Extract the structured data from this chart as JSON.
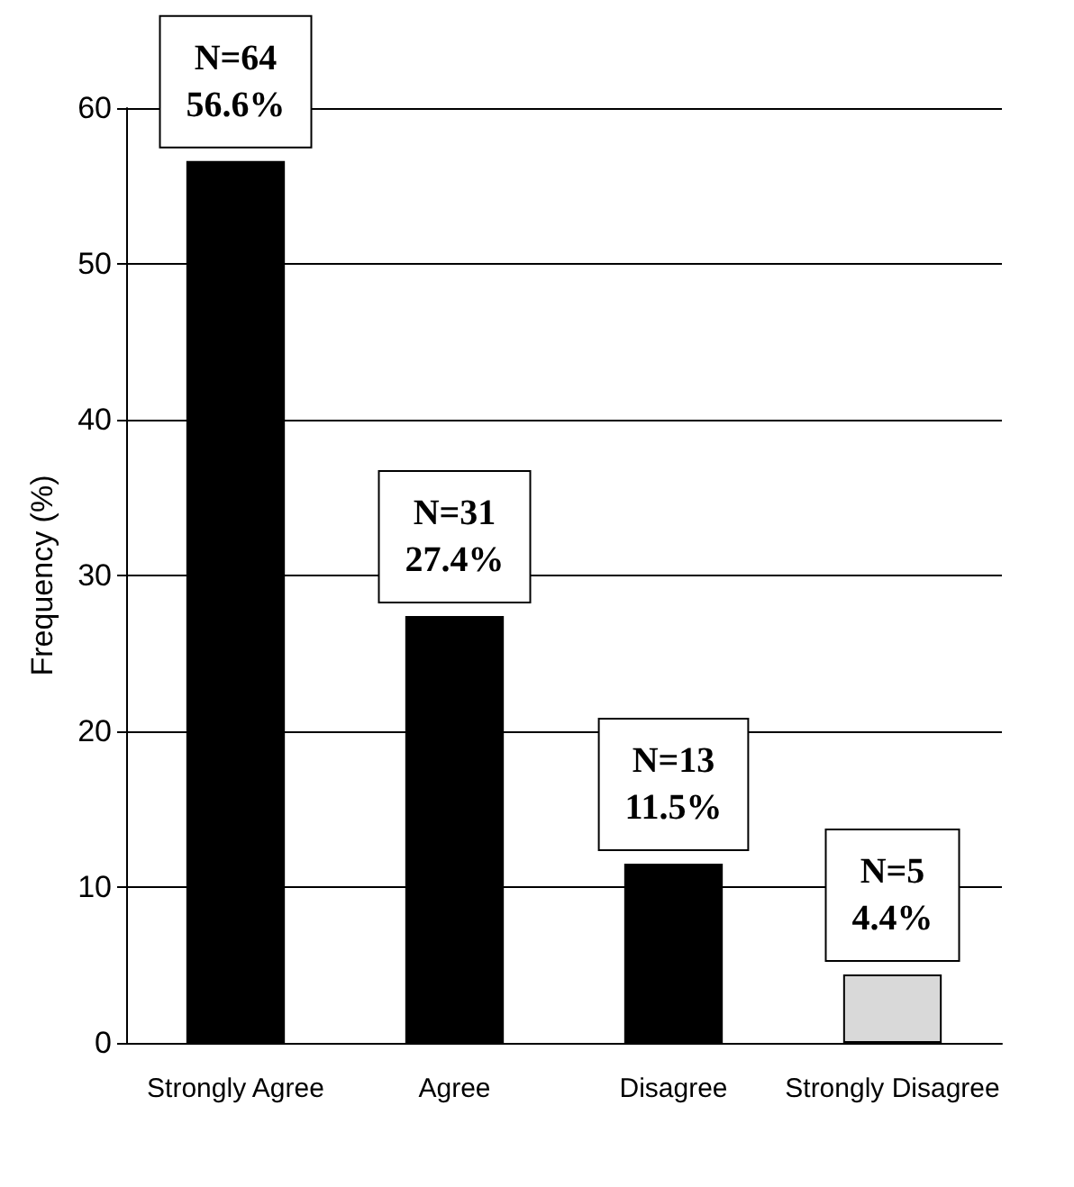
{
  "chart_data": {
    "type": "bar",
    "categories": [
      "Strongly Agree",
      "Agree",
      "Disagree",
      "Strongly Disagree"
    ],
    "values": [
      56.6,
      27.4,
      11.5,
      4.4
    ],
    "colors": [
      "#000000",
      "#000000",
      "#000000",
      "#d9d9d9"
    ],
    "value_labels": [
      "N=64\n56.6%",
      "N=31\n27.4%",
      "N=13\n11.5%",
      "N=5\n4.4%"
    ],
    "ylabel": "Frequency (%)",
    "ylim": [
      0,
      60
    ],
    "yticks": [
      0,
      10,
      20,
      30,
      40,
      50,
      60
    ],
    "grid": "y"
  }
}
